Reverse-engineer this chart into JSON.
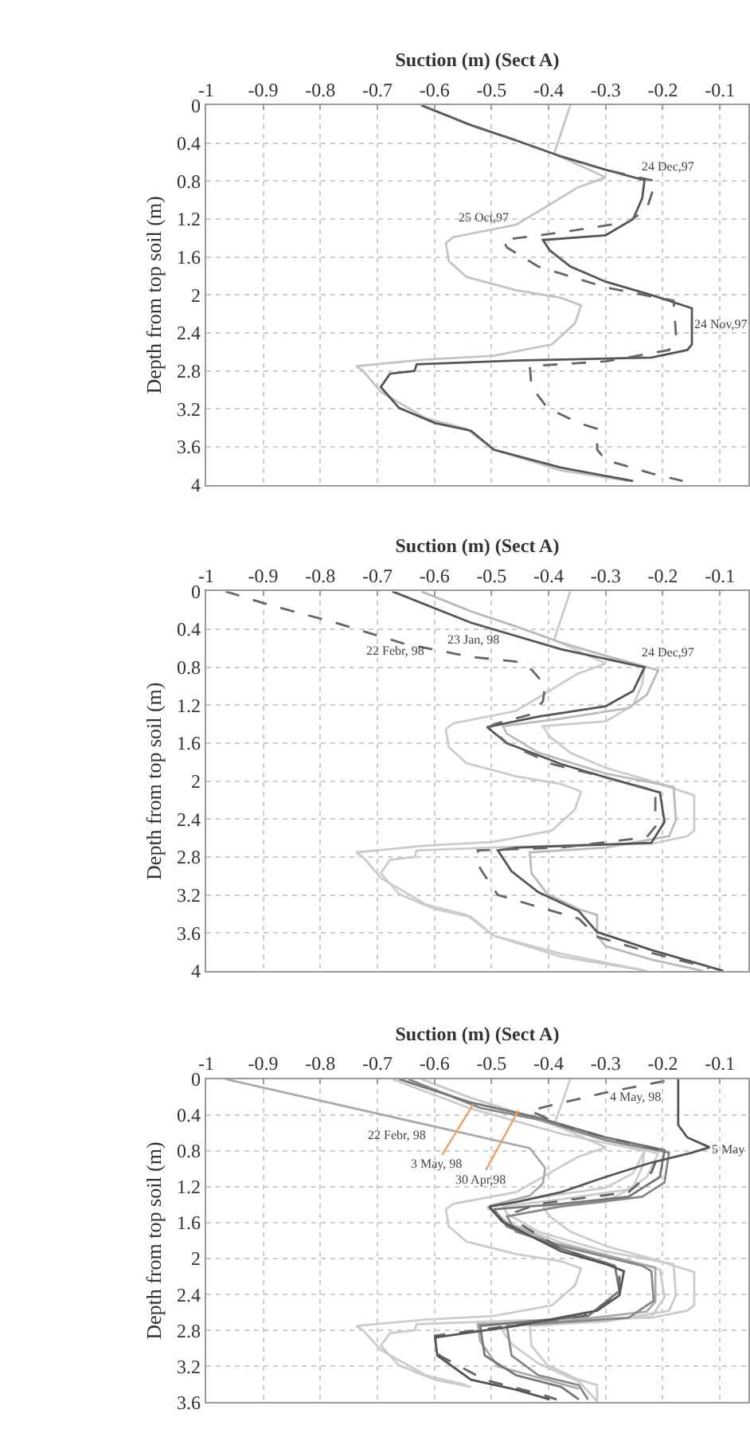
{
  "chart_data": [
    {
      "type": "line",
      "xlabel": "Suction (m) (Sect A)",
      "ylabel": "Depth from top soil (m)",
      "xlim": [
        -1,
        -0.05
      ],
      "xticks": [
        -1,
        -0.9,
        -0.8,
        -0.7,
        -0.6,
        -0.5,
        -0.4,
        -0.3,
        -0.2,
        -0.1
      ],
      "ylim": [
        4,
        0
      ],
      "yticks": [
        0,
        0.4,
        0.8,
        1.2,
        1.6,
        2,
        2.4,
        2.8,
        3.2,
        3.6,
        4
      ],
      "grid": true,
      "series": [
        {
          "color": "#c4c4c4",
          "x": [
            -0.362,
            -0.386,
            -0.39,
            -0.3,
            -0.35,
            -0.41,
            -0.457,
            -0.567,
            -0.58,
            -0.575,
            -0.544,
            -0.457,
            -0.378,
            -0.343,
            -0.354,
            -0.394,
            -0.496,
            -0.615,
            -0.737,
            -0.725,
            -0.694,
            -0.615,
            -0.544,
            -0.496,
            -0.378,
            -0.26
          ],
          "values": [
            0,
            0.43,
            0.51,
            0.76,
            0.87,
            1.09,
            1.26,
            1.39,
            1.45,
            1.64,
            1.81,
            1.95,
            2.03,
            2.11,
            2.3,
            2.52,
            2.64,
            2.68,
            2.75,
            2.8,
            3.02,
            3.3,
            3.41,
            3.63,
            3.85,
            3.96
          ]
        },
        {
          "color": "#555555",
          "x": [
            -0.623,
            -0.536,
            -0.457,
            -0.378,
            -0.3,
            -0.232,
            -0.236,
            -0.252,
            -0.3,
            -0.41,
            -0.398,
            -0.362,
            -0.3,
            -0.22,
            -0.149,
            -0.149,
            -0.157,
            -0.22,
            -0.457,
            -0.631,
            -0.635,
            -0.678,
            -0.694,
            -0.662,
            -0.599,
            -0.536,
            -0.496,
            -0.378,
            -0.252
          ],
          "values": [
            0,
            0.21,
            0.37,
            0.54,
            0.68,
            0.79,
            0.98,
            1.2,
            1.37,
            1.42,
            1.53,
            1.7,
            1.86,
            2,
            2.14,
            2.52,
            2.58,
            2.66,
            2.69,
            2.73,
            2.8,
            2.83,
            2.97,
            3.19,
            3.35,
            3.43,
            3.63,
            3.82,
            3.96
          ]
        },
        {
          "color": "#666666",
          "line_style": "dashed",
          "x": [
            -0.623,
            -0.536,
            -0.457,
            -0.378,
            -0.3,
            -0.212,
            -0.228,
            -0.26,
            -0.378,
            -0.48,
            -0.473,
            -0.418,
            -0.3,
            -0.181,
            -0.177,
            -0.189,
            -0.3,
            -0.433,
            -0.43,
            -0.402,
            -0.347,
            -0.315,
            -0.315,
            -0.3,
            -0.22,
            -0.165
          ],
          "values": [
            0,
            0.21,
            0.37,
            0.54,
            0.68,
            0.8,
            1.09,
            1.23,
            1.34,
            1.42,
            1.5,
            1.7,
            1.92,
            2.06,
            2.41,
            2.58,
            2.7,
            2.75,
            2.97,
            3.19,
            3.35,
            3.41,
            3.63,
            3.74,
            3.88,
            3.96
          ]
        }
      ],
      "annotations": [
        "24 Dec,97",
        "25 Oct,97",
        "24 Nov,97"
      ]
    },
    {
      "type": "line",
      "xlabel": "Suction (m) (Sect A)",
      "ylabel": "Depth from top soil (m)",
      "xlim": [
        -1,
        -0.05
      ],
      "xticks": [
        -1,
        -0.9,
        -0.8,
        -0.7,
        -0.6,
        -0.5,
        -0.4,
        -0.3,
        -0.2,
        -0.1
      ],
      "ylim": [
        4,
        0
      ],
      "yticks": [
        0,
        0.4,
        0.8,
        1.2,
        1.6,
        2,
        2.4,
        2.8,
        3.2,
        3.6,
        4
      ],
      "grid": true,
      "series": [
        {
          "color": "#cccccc",
          "x": [
            -0.362,
            -0.386,
            -0.39,
            -0.3,
            -0.35,
            -0.41,
            -0.457,
            -0.567,
            -0.58,
            -0.575,
            -0.544,
            -0.457,
            -0.378,
            -0.343,
            -0.354,
            -0.394,
            -0.496,
            -0.615,
            -0.737,
            -0.725,
            -0.694,
            -0.615,
            -0.544,
            -0.496,
            -0.378,
            -0.228
          ],
          "values": [
            0,
            0.43,
            0.51,
            0.76,
            0.87,
            1.09,
            1.26,
            1.39,
            1.45,
            1.64,
            1.81,
            1.95,
            2.03,
            2.11,
            2.3,
            2.52,
            2.64,
            2.68,
            2.75,
            2.8,
            3.02,
            3.3,
            3.41,
            3.63,
            3.85,
            4
          ]
        },
        {
          "color": "#cccccc",
          "x": [
            -0.623,
            -0.536,
            -0.457,
            -0.378,
            -0.3,
            -0.232,
            -0.236,
            -0.252,
            -0.3,
            -0.41,
            -0.398,
            -0.362,
            -0.3,
            -0.22,
            -0.145,
            -0.145,
            -0.157,
            -0.22,
            -0.457,
            -0.631,
            -0.635,
            -0.678,
            -0.694,
            -0.662,
            -0.599,
            -0.536,
            -0.496,
            -0.378,
            -0.228
          ],
          "values": [
            0,
            0.21,
            0.37,
            0.54,
            0.68,
            0.79,
            0.98,
            1.2,
            1.37,
            1.42,
            1.53,
            1.7,
            1.86,
            2,
            2.15,
            2.52,
            2.58,
            2.66,
            2.69,
            2.73,
            2.8,
            2.83,
            2.97,
            3.19,
            3.35,
            3.43,
            3.63,
            3.82,
            4
          ]
        },
        {
          "color": "#bbbbbb",
          "x": [
            -0.623,
            -0.536,
            -0.457,
            -0.378,
            -0.3,
            -0.208,
            -0.228,
            -0.26,
            -0.378,
            -0.48,
            -0.473,
            -0.418,
            -0.3,
            -0.181,
            -0.177,
            -0.189,
            -0.3,
            -0.433,
            -0.43,
            -0.402,
            -0.347,
            -0.315,
            -0.315,
            -0.3,
            -0.22,
            -0.13
          ],
          "values": [
            0,
            0.21,
            0.37,
            0.54,
            0.68,
            0.83,
            1.09,
            1.23,
            1.34,
            1.42,
            1.5,
            1.7,
            1.92,
            2.06,
            2.41,
            2.58,
            2.7,
            2.75,
            2.97,
            3.19,
            3.35,
            3.41,
            3.63,
            3.74,
            3.88,
            4
          ]
        },
        {
          "color": "#555555",
          "x": [
            -0.674,
            -0.536,
            -0.378,
            -0.232,
            -0.252,
            -0.3,
            -0.418,
            -0.508,
            -0.473,
            -0.378,
            -0.3,
            -0.205,
            -0.197,
            -0.22,
            -0.457,
            -0.489,
            -0.465,
            -0.418,
            -0.347,
            -0.315,
            -0.22,
            -0.094
          ],
          "values": [
            0,
            0.33,
            0.61,
            0.8,
            1.05,
            1.21,
            1.32,
            1.43,
            1.6,
            1.82,
            1.96,
            2.12,
            2.43,
            2.65,
            2.7,
            2.73,
            2.95,
            3.17,
            3.37,
            3.59,
            3.78,
            4
          ]
        },
        {
          "color": "#666666",
          "line_style": "dashed",
          "x": [
            -0.966,
            -0.891,
            -0.773,
            -0.654,
            -0.536,
            -0.457,
            -0.429,
            -0.406,
            -0.41,
            -0.433,
            -0.496,
            -0.504,
            -0.473,
            -0.394,
            -0.3,
            -0.213,
            -0.213,
            -0.228,
            -0.378,
            -0.524,
            -0.52,
            -0.489,
            -0.41,
            -0.347,
            -0.315,
            -0.22,
            -0.118
          ],
          "values": [
            0,
            0.14,
            0.33,
            0.55,
            0.69,
            0.74,
            0.83,
            0.99,
            1.16,
            1.3,
            1.4,
            1.43,
            1.6,
            1.82,
            1.96,
            2.1,
            2.48,
            2.59,
            2.7,
            2.73,
            2.92,
            3.2,
            3.34,
            3.45,
            3.64,
            3.81,
            3.97
          ]
        }
      ],
      "annotations": [
        "23 Jan, 98",
        "22 Febr, 98",
        "24 Dec,97"
      ]
    },
    {
      "type": "line",
      "xlabel": "Suction (m) (Sect A)",
      "ylabel": "Depth from top soil (m)",
      "xlim": [
        -1,
        -0.05
      ],
      "xticks": [
        -1,
        -0.9,
        -0.8,
        -0.7,
        -0.6,
        -0.5,
        -0.4,
        -0.3,
        -0.2,
        -0.1
      ],
      "ylim": [
        3.6,
        0
      ],
      "yticks": [
        0,
        0.4,
        0.8,
        1.2,
        1.6,
        2,
        2.4,
        2.8,
        3.2,
        3.6
      ],
      "grid": true,
      "series": [
        {
          "color": "#cccccc",
          "x": [
            -0.362,
            -0.386,
            -0.39,
            -0.3,
            -0.35,
            -0.41,
            -0.457,
            -0.567,
            -0.58,
            -0.575,
            -0.544,
            -0.457,
            -0.378,
            -0.343,
            -0.354,
            -0.394,
            -0.496,
            -0.615,
            -0.737,
            -0.725,
            -0.694,
            -0.615,
            -0.544
          ],
          "values": [
            0,
            0.43,
            0.51,
            0.76,
            0.87,
            1.09,
            1.26,
            1.39,
            1.45,
            1.64,
            1.81,
            1.95,
            2.03,
            2.11,
            2.3,
            2.52,
            2.64,
            2.68,
            2.75,
            2.8,
            3.02,
            3.3,
            3.41
          ]
        },
        {
          "color": "#cccccc",
          "x": [
            -0.623,
            -0.536,
            -0.457,
            -0.378,
            -0.3,
            -0.232,
            -0.236,
            -0.252,
            -0.3,
            -0.41,
            -0.398,
            -0.362,
            -0.3,
            -0.22,
            -0.145,
            -0.145,
            -0.157,
            -0.22,
            -0.457,
            -0.631,
            -0.635,
            -0.678,
            -0.694,
            -0.662,
            -0.599,
            -0.536
          ],
          "values": [
            0,
            0.21,
            0.37,
            0.54,
            0.68,
            0.79,
            0.98,
            1.2,
            1.37,
            1.42,
            1.53,
            1.7,
            1.86,
            2,
            2.15,
            2.52,
            2.58,
            2.66,
            2.69,
            2.73,
            2.8,
            2.83,
            2.97,
            3.19,
            3.35,
            3.43
          ]
        },
        {
          "color": "#cccccc",
          "x": [
            -0.623,
            -0.536,
            -0.457,
            -0.378,
            -0.3,
            -0.208,
            -0.228,
            -0.26,
            -0.378,
            -0.48,
            -0.473,
            -0.418,
            -0.3,
            -0.181,
            -0.177,
            -0.189,
            -0.3,
            -0.433,
            -0.43,
            -0.402,
            -0.347,
            -0.315,
            -0.315
          ],
          "values": [
            0,
            0.21,
            0.37,
            0.54,
            0.68,
            0.83,
            1.09,
            1.23,
            1.34,
            1.42,
            1.5,
            1.7,
            1.92,
            2.06,
            2.41,
            2.58,
            2.7,
            2.75,
            2.97,
            3.19,
            3.35,
            3.41,
            3.6
          ]
        },
        {
          "color": "#cccccc",
          "x": [
            -0.674,
            -0.536,
            -0.378,
            -0.232,
            -0.252,
            -0.3,
            -0.418,
            -0.508,
            -0.473,
            -0.378,
            -0.3,
            -0.205,
            -0.197,
            -0.22,
            -0.457,
            -0.489,
            -0.465,
            -0.418,
            -0.347,
            -0.315
          ],
          "values": [
            0,
            0.33,
            0.61,
            0.8,
            1.05,
            1.21,
            1.32,
            1.43,
            1.6,
            1.82,
            1.96,
            2.12,
            2.43,
            2.65,
            2.7,
            2.73,
            2.95,
            3.17,
            3.37,
            3.59
          ]
        },
        {
          "color": "#aaaaaa",
          "x": [
            -0.966,
            -0.433,
            -0.406,
            -0.41,
            -0.433,
            -0.496,
            -0.504,
            -0.473,
            -0.394,
            -0.3,
            -0.213,
            -0.213,
            -0.228,
            -0.378,
            -0.524,
            -0.52,
            -0.489,
            -0.41,
            -0.347
          ],
          "values": [
            0,
            0.77,
            0.99,
            1.16,
            1.3,
            1.4,
            1.43,
            1.6,
            1.82,
            1.96,
            2.1,
            2.48,
            2.59,
            2.7,
            2.73,
            2.92,
            3.2,
            3.34,
            3.45
          ]
        },
        {
          "color": "#888888",
          "x": [
            -0.646,
            -0.52,
            -0.41,
            -0.3,
            -0.189,
            -0.197,
            -0.236,
            -0.378,
            -0.473,
            -0.457,
            -0.378,
            -0.236,
            -0.22,
            -0.216,
            -0.26,
            -0.473,
            -0.465,
            -0.418,
            -0.347,
            -0.331
          ],
          "values": [
            0,
            0.32,
            0.46,
            0.68,
            0.82,
            1.15,
            1.31,
            1.42,
            1.53,
            1.7,
            1.86,
            2.08,
            2.14,
            2.47,
            2.66,
            2.75,
            3.08,
            3.3,
            3.41,
            3.57
          ]
        },
        {
          "color": "#777777",
          "x": [
            -0.662,
            -0.536,
            -0.418,
            -0.3,
            -0.197,
            -0.205,
            -0.26,
            -0.378,
            -0.496,
            -0.473,
            -0.378,
            -0.284,
            -0.276,
            -0.331,
            -0.52,
            -0.512,
            -0.457,
            -0.378,
            -0.347
          ],
          "values": [
            0,
            0.26,
            0.43,
            0.65,
            0.79,
            1.09,
            1.31,
            1.39,
            1.45,
            1.64,
            1.89,
            2.08,
            2.36,
            2.64,
            2.75,
            3.08,
            3.3,
            3.43,
            3.57
          ]
        },
        {
          "color": "#666666",
          "line_style": "dashed",
          "x": [
            -0.197,
            -0.3,
            -0.394,
            -0.433,
            -0.378,
            -0.3,
            -0.204,
            -0.22,
            -0.26,
            -0.418,
            -0.457,
            -0.449,
            -0.378,
            -0.276,
            -0.276,
            -0.339,
            -0.599,
            -0.591,
            -0.512,
            -0.41,
            -0.386
          ],
          "values": [
            0.02,
            0.15,
            0.29,
            0.35,
            0.51,
            0.65,
            0.79,
            1.04,
            1.26,
            1.39,
            1.48,
            1.62,
            1.89,
            2.11,
            2.41,
            2.64,
            2.86,
            3.08,
            3.35,
            3.52,
            3.57
          ]
        },
        {
          "color": "#555555",
          "x": [
            -0.173,
            -0.173,
            -0.157,
            -0.118,
            -0.149,
            -0.22,
            -0.3,
            -0.378,
            -0.457,
            -0.504,
            -0.481,
            -0.378,
            -0.3,
            -0.268,
            -0.276,
            -0.315,
            -0.457,
            -0.599,
            -0.595,
            -0.536,
            -0.457,
            -0.398
          ],
          "values": [
            0,
            0.51,
            0.65,
            0.76,
            0.82,
            0.93,
            1.09,
            1.26,
            1.37,
            1.42,
            1.59,
            1.92,
            2.06,
            2.14,
            2.41,
            2.58,
            2.75,
            2.88,
            3.08,
            3.35,
            3.46,
            3.57
          ]
        }
      ],
      "annotations": [
        "4 May, 98",
        "22 Febr, 98",
        {
          "text": "3 May, 98",
          "x": -0.532,
          "y": 0.28
        },
        {
          "text": "30 Apr,98",
          "x": -0.453,
          "y": 0.35
        },
        "5 May"
      ]
    }
  ]
}
